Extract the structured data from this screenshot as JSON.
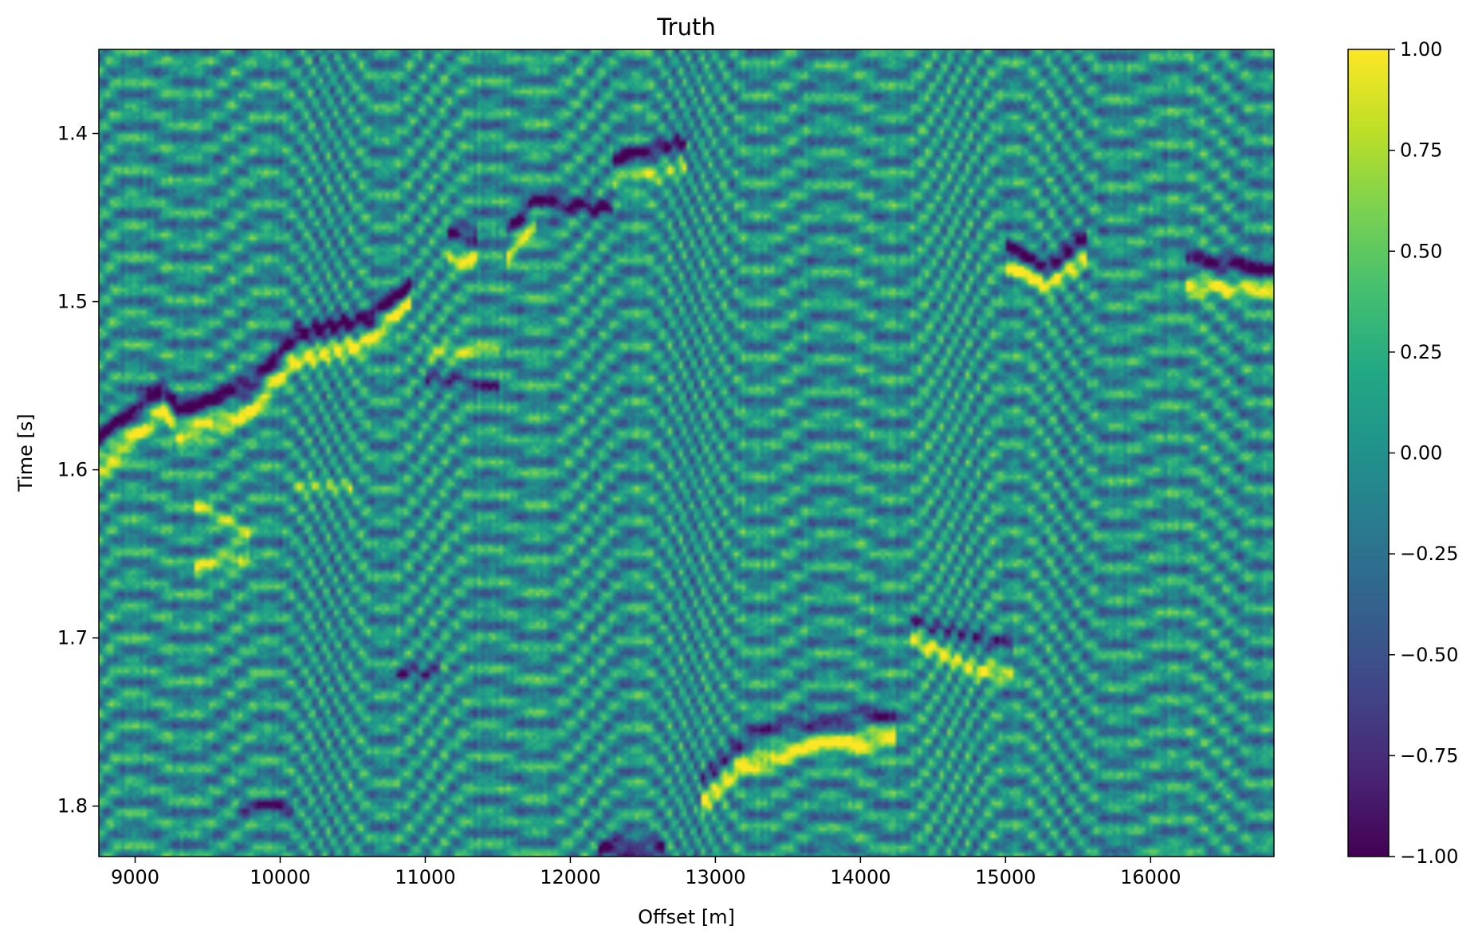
{
  "chart_data": {
    "type": "heatmap",
    "title": "Truth",
    "xlabel": "Offset [m]",
    "ylabel": "Time [s]",
    "xlim": [
      8750,
      16850
    ],
    "ylim": [
      1.35,
      1.83
    ],
    "y_inverted": true,
    "x_ticks": [
      9000,
      10000,
      11000,
      12000,
      13000,
      14000,
      15000,
      16000
    ],
    "y_ticks": [
      1.4,
      1.5,
      1.6,
      1.7,
      1.8
    ],
    "colormap": "viridis",
    "colorbar": {
      "vmin": -1.0,
      "vmax": 1.0,
      "ticks": [
        "1.00",
        "0.75",
        "0.50",
        "0.25",
        "0.00",
        "−0.25",
        "−0.50",
        "−0.75",
        "−1.00"
      ],
      "tick_values": [
        1.0,
        0.75,
        0.5,
        0.25,
        0.0,
        -0.25,
        -0.5,
        -0.75,
        -1.0
      ]
    },
    "features": [
      {
        "kind": "reflector",
        "points": [
          [
            8750,
            1.58
          ],
          [
            9200,
            1.55
          ],
          [
            9300,
            1.565
          ],
          [
            9800,
            1.55
          ],
          [
            10100,
            1.52
          ],
          [
            10600,
            1.51
          ],
          [
            10900,
            1.49
          ]
        ],
        "amp": -1.0,
        "width": 0.006
      },
      {
        "kind": "reflector",
        "points": [
          [
            8750,
            1.6
          ],
          [
            9200,
            1.565
          ],
          [
            9300,
            1.58
          ],
          [
            9800,
            1.565
          ],
          [
            10100,
            1.535
          ],
          [
            10600,
            1.525
          ],
          [
            10900,
            1.5
          ]
        ],
        "amp": 1.0,
        "width": 0.006
      },
      {
        "kind": "reflector",
        "points": [
          [
            11150,
            1.46
          ],
          [
            11350,
            1.46
          ]
        ],
        "amp": -0.9,
        "width": 0.005
      },
      {
        "kind": "reflector",
        "points": [
          [
            11150,
            1.475
          ],
          [
            11350,
            1.475
          ]
        ],
        "amp": 0.95,
        "width": 0.005
      },
      {
        "kind": "reflector",
        "points": [
          [
            11550,
            1.46
          ],
          [
            11750,
            1.44
          ],
          [
            12300,
            1.445
          ]
        ],
        "amp": -0.95,
        "width": 0.005
      },
      {
        "kind": "reflector",
        "points": [
          [
            11550,
            1.475
          ],
          [
            11750,
            1.455
          ]
        ],
        "amp": 0.9,
        "width": 0.005
      },
      {
        "kind": "reflector",
        "points": [
          [
            12300,
            1.415
          ],
          [
            12800,
            1.405
          ]
        ],
        "amp": -0.9,
        "width": 0.005
      },
      {
        "kind": "reflector",
        "points": [
          [
            12300,
            1.43
          ],
          [
            12800,
            1.42
          ]
        ],
        "amp": 0.6,
        "width": 0.005
      },
      {
        "kind": "reflector",
        "points": [
          [
            15000,
            1.465
          ],
          [
            15300,
            1.48
          ],
          [
            15550,
            1.46
          ]
        ],
        "amp": -1.0,
        "width": 0.005
      },
      {
        "kind": "reflector",
        "points": [
          [
            15000,
            1.48
          ],
          [
            15300,
            1.49
          ],
          [
            15550,
            1.475
          ]
        ],
        "amp": 1.0,
        "width": 0.005
      },
      {
        "kind": "reflector",
        "points": [
          [
            16250,
            1.475
          ],
          [
            16850,
            1.48
          ]
        ],
        "amp": -1.0,
        "width": 0.005
      },
      {
        "kind": "reflector",
        "points": [
          [
            16250,
            1.49
          ],
          [
            16850,
            1.495
          ]
        ],
        "amp": 1.0,
        "width": 0.005
      },
      {
        "kind": "reflector",
        "points": [
          [
            14350,
            1.7
          ],
          [
            14800,
            1.72
          ],
          [
            15050,
            1.72
          ]
        ],
        "amp": 0.9,
        "width": 0.005
      },
      {
        "kind": "reflector",
        "points": [
          [
            14350,
            1.69
          ],
          [
            15050,
            1.705
          ]
        ],
        "amp": -0.6,
        "width": 0.005
      },
      {
        "kind": "reflector",
        "points": [
          [
            12900,
            1.8
          ],
          [
            13200,
            1.775
          ],
          [
            13600,
            1.765
          ],
          [
            14250,
            1.76
          ]
        ],
        "amp": 1.0,
        "width": 0.006
      },
      {
        "kind": "reflector",
        "points": [
          [
            12900,
            1.785
          ],
          [
            13200,
            1.76
          ],
          [
            13600,
            1.75
          ],
          [
            14250,
            1.745
          ]
        ],
        "amp": -0.7,
        "width": 0.005
      },
      {
        "kind": "reflector",
        "points": [
          [
            12200,
            1.825
          ],
          [
            12650,
            1.825
          ]
        ],
        "amp": -0.9,
        "width": 0.006
      },
      {
        "kind": "reflector",
        "points": [
          [
            9400,
            1.62
          ],
          [
            9800,
            1.64
          ]
        ],
        "amp": 0.7,
        "width": 0.005
      },
      {
        "kind": "reflector",
        "points": [
          [
            9400,
            1.66
          ],
          [
            9800,
            1.65
          ]
        ],
        "amp": 0.75,
        "width": 0.005
      },
      {
        "kind": "reflector",
        "points": [
          [
            10100,
            1.61
          ],
          [
            10500,
            1.61
          ]
        ],
        "amp": 0.55,
        "width": 0.004
      },
      {
        "kind": "reflector",
        "points": [
          [
            10800,
            1.72
          ],
          [
            11100,
            1.72
          ]
        ],
        "amp": -0.6,
        "width": 0.005
      },
      {
        "kind": "reflector",
        "points": [
          [
            11000,
            1.53
          ],
          [
            11500,
            1.53
          ]
        ],
        "amp": 0.6,
        "width": 0.005
      },
      {
        "kind": "reflector",
        "points": [
          [
            11000,
            1.545
          ],
          [
            11500,
            1.55
          ]
        ],
        "amp": -0.6,
        "width": 0.005
      },
      {
        "kind": "reflector",
        "points": [
          [
            9700,
            1.8
          ],
          [
            10100,
            1.8
          ]
        ],
        "amp": -0.6,
        "width": 0.005
      }
    ]
  }
}
